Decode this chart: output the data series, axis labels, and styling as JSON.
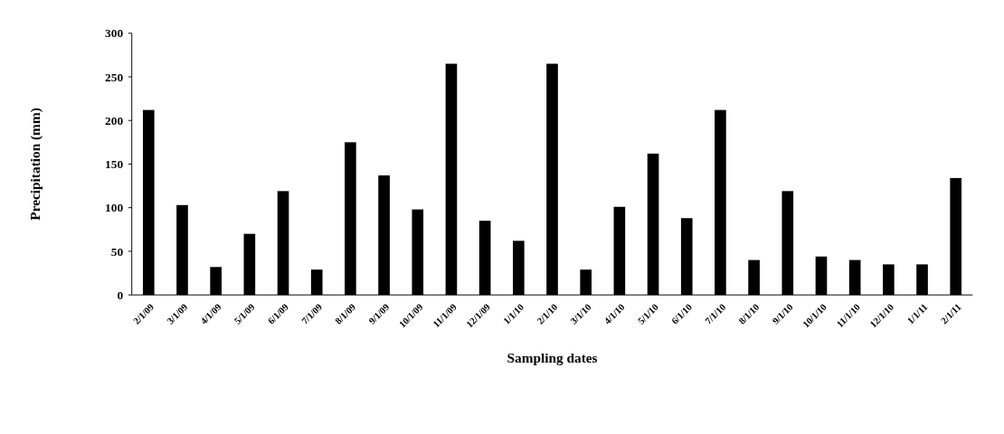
{
  "chart_data": {
    "type": "bar",
    "xlabel": "Sampling dates",
    "ylabel": "Precipitation (mm)",
    "categories": [
      "2/1/09",
      "3/1/09",
      "4/1/09",
      "5/1/09",
      "6/1/09",
      "7/1/09",
      "8/1/09",
      "9/1/09",
      "10/1/09",
      "11/1/09",
      "12/1/09",
      "1/1/10",
      "2/1/10",
      "3/1/10",
      "4/1/10",
      "5/1/10",
      "6/1/10",
      "7/1/10",
      "8/1/10",
      "9/1/10",
      "10/1/10",
      "11/1/10",
      "12/1/10",
      "1/1/11",
      "2/1/11"
    ],
    "values": [
      212,
      103,
      32,
      70,
      119,
      29,
      175,
      137,
      98,
      265,
      85,
      62,
      265,
      29,
      101,
      162,
      88,
      212,
      40,
      119,
      44,
      40,
      35,
      35,
      134
    ],
    "color": "#000000",
    "ylim": [
      0,
      300
    ],
    "yticks": [
      0,
      50,
      100,
      150,
      200,
      250,
      300
    ],
    "grid": false
  }
}
